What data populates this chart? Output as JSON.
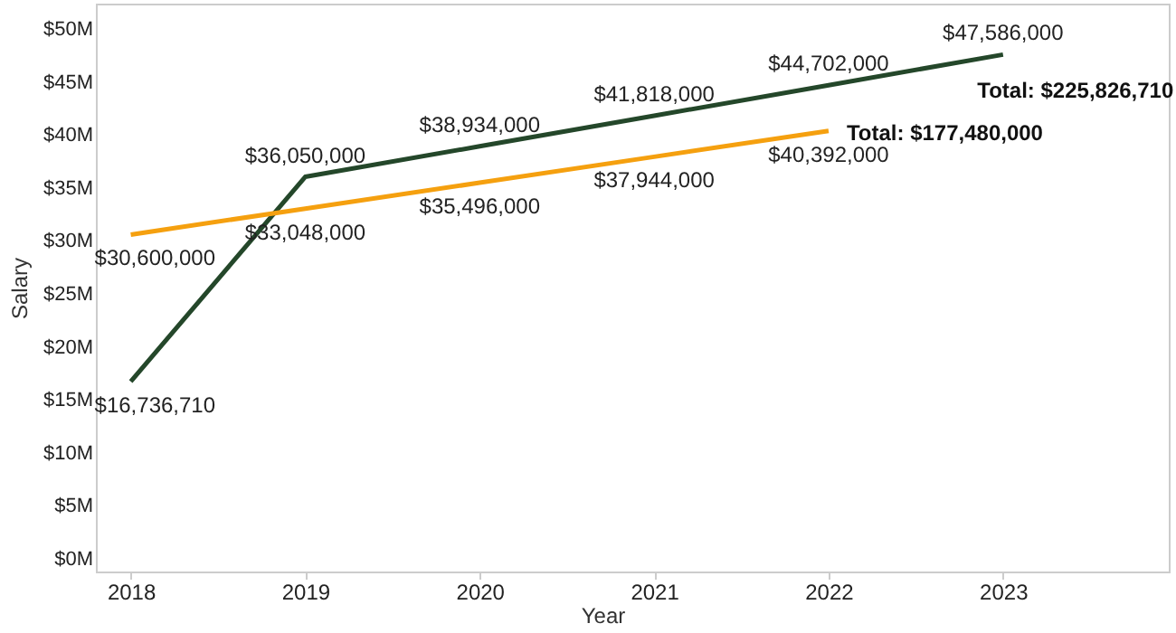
{
  "chart_data": {
    "type": "line",
    "xlabel": "Year",
    "ylabel": "Salary",
    "x": [
      2018,
      2019,
      2020,
      2021,
      2022,
      2023
    ],
    "series": [
      {
        "color": "#24472a",
        "values": [
          16736710,
          36050000,
          38934000,
          41818000,
          44702000,
          47586000
        ],
        "value_labels": [
          "$16,736,710",
          "$36,050,000",
          "$38,934,000",
          "$41,818,000",
          "$44,702,000",
          "$47,586,000"
        ]
      },
      {
        "color": "#f5a00f",
        "x": [
          2018,
          2019,
          2020,
          2021,
          2022
        ],
        "values": [
          30600000,
          33048000,
          35496000,
          37944000,
          40392000
        ],
        "value_labels": [
          "$30,600,000",
          "$33,048,000",
          "$35,496,000",
          "$37,944,000",
          "$40,392,000"
        ]
      }
    ],
    "xlim": [
      2017.8,
      2023.95
    ],
    "xticks": [
      2018,
      2019,
      2020,
      2021,
      2022,
      2023
    ],
    "ylim": [
      -1200000,
      52400000
    ],
    "yticks": [
      {
        "value": 0,
        "label": "$0M"
      },
      {
        "value": 5000000,
        "label": "$5M"
      },
      {
        "value": 10000000,
        "label": "$10M"
      },
      {
        "value": 15000000,
        "label": "$15M"
      },
      {
        "value": 20000000,
        "label": "$20M"
      },
      {
        "value": 25000000,
        "label": "$25M"
      },
      {
        "value": 30000000,
        "label": "$30M"
      },
      {
        "value": 35000000,
        "label": "$35M"
      },
      {
        "value": 40000000,
        "label": "$40M"
      },
      {
        "value": 45000000,
        "label": "$45M"
      },
      {
        "value": 50000000,
        "label": "$50M"
      }
    ],
    "grid": false,
    "legend": false,
    "marker": "none",
    "line_style": "solid",
    "annotations": [
      {
        "text": "Total: $225,826,710",
        "x": 2023,
        "y": 47586000
      },
      {
        "text": "Total: $177,480,000",
        "x": 2022,
        "y": 40392000
      }
    ]
  }
}
